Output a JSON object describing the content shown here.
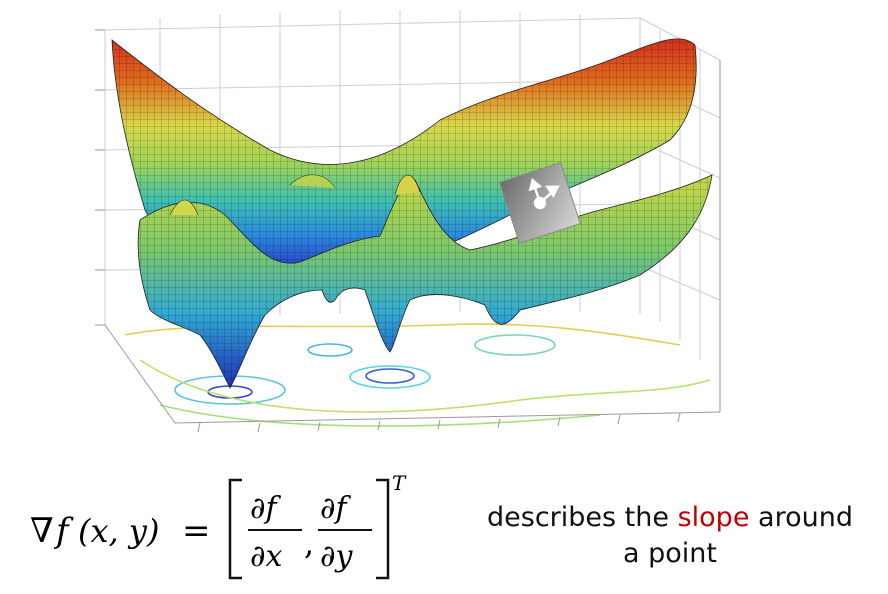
{
  "formula": {
    "nabla": "∇",
    "lhs_func": "f",
    "lhs_args": "(x, y)",
    "equals": "=",
    "num_1": "∂f",
    "den_1": "∂x",
    "comma": ",",
    "num_2": "∂f",
    "den_2": "∂y",
    "transpose": "T"
  },
  "caption": {
    "before": "describes the",
    "highlight": "slope",
    "after": "around",
    "line2": "a point"
  },
  "colors": {
    "highlight": "#c00000",
    "surface_high": "#d0301e",
    "surface_mid": "#d9d84a",
    "surface_low": "#2a3dc4",
    "grid": "#cccccc",
    "marker": "#9a9a9a"
  },
  "icons": {
    "gradient_marker": "gradient-arrows-icon"
  }
}
